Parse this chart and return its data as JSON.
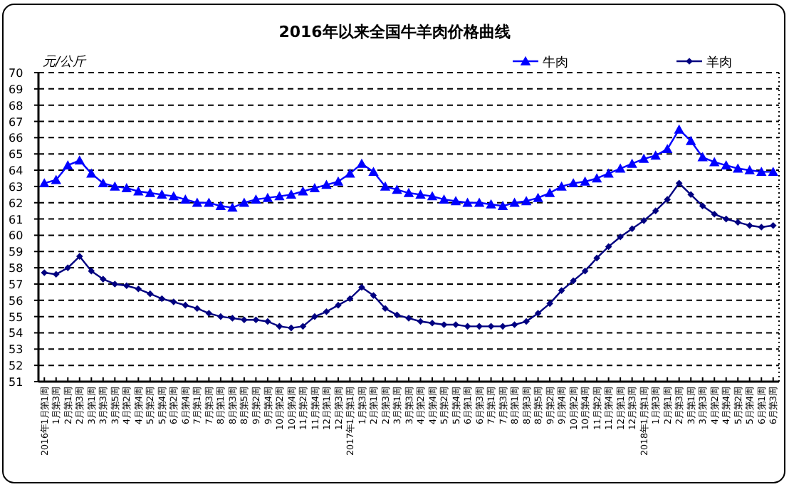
{
  "chart_data": {
    "type": "line",
    "title": "2016年以来全国牛羊肉价格曲线",
    "ylabel": "元/公斤",
    "categories": [
      "2016年1月第1周",
      "1月第3周",
      "2月第1周",
      "2月第3周",
      "3月第1周",
      "3月第3周",
      "3月第5周",
      "4月第2周",
      "4月第4周",
      "5月第2周",
      "5月第4周",
      "6月第2周",
      "6月第4周",
      "7月第1周",
      "7月第3周",
      "8月第1周",
      "8月第3周",
      "8月第5周",
      "9月第2周",
      "9月第4周",
      "10月第2周",
      "10月第4周",
      "11月第2周",
      "11月第4周",
      "12月第1周",
      "12月第3周",
      "2017年1月第1周",
      "1月第3周",
      "2月第1周",
      "2月第3周",
      "3月第1周",
      "3月第3周",
      "4月第2周",
      "4月第4周",
      "5月第2周",
      "5月第4周",
      "6月第1周",
      "6月第3周",
      "7月第1周",
      "7月第3周",
      "8月第1周",
      "8月第3周",
      "8月第5周",
      "9月第2周",
      "9月第4周",
      "10月第2周",
      "10月第4周",
      "11月第2周",
      "11月第4周",
      "12月第1周",
      "12月第3周",
      "2018年1月第1周",
      "1月第3周",
      "2月第1周",
      "2月第3周",
      "3月第1周",
      "3月第3周",
      "4月第2周",
      "4月第4周",
      "5月第2周",
      "5月第4周",
      "6月第1周",
      "6月第3周"
    ],
    "series": [
      {
        "name": "牛肉",
        "color": "#0000ff",
        "marker": "triangle",
        "values": [
          63.2,
          63.4,
          64.3,
          64.6,
          63.8,
          63.2,
          63.0,
          62.9,
          62.7,
          62.6,
          62.5,
          62.4,
          62.2,
          62.0,
          62.0,
          61.8,
          61.7,
          62.0,
          62.2,
          62.3,
          62.4,
          62.5,
          62.7,
          62.9,
          63.1,
          63.3,
          63.8,
          64.4,
          63.9,
          63.0,
          62.8,
          62.6,
          62.5,
          62.4,
          62.2,
          62.1,
          62.0,
          62.0,
          61.9,
          61.8,
          62.0,
          62.1,
          62.3,
          62.6,
          63.0,
          63.2,
          63.3,
          63.5,
          63.8,
          64.1,
          64.4,
          64.7,
          64.9,
          65.3,
          66.5,
          65.8,
          64.8,
          64.5,
          64.3,
          64.1,
          64.0,
          63.9,
          63.9
        ]
      },
      {
        "name": "羊肉",
        "color": "#000080",
        "marker": "diamond",
        "values": [
          57.7,
          57.6,
          58.0,
          58.7,
          57.8,
          57.3,
          57.0,
          56.9,
          56.7,
          56.4,
          56.1,
          55.9,
          55.7,
          55.5,
          55.2,
          55.0,
          54.9,
          54.8,
          54.8,
          54.7,
          54.4,
          54.3,
          54.4,
          55.0,
          55.3,
          55.7,
          56.1,
          56.8,
          56.3,
          55.5,
          55.1,
          54.9,
          54.7,
          54.6,
          54.5,
          54.5,
          54.4,
          54.4,
          54.4,
          54.4,
          54.5,
          54.7,
          55.2,
          55.8,
          56.6,
          57.2,
          57.8,
          58.6,
          59.3,
          59.9,
          60.4,
          60.9,
          61.5,
          62.2,
          63.2,
          62.5,
          61.8,
          61.3,
          61.0,
          60.8,
          60.6,
          60.5,
          60.6
        ]
      }
    ],
    "ylim": [
      51,
      70
    ],
    "yticks": [
      51,
      52,
      53,
      54,
      55,
      56,
      57,
      58,
      59,
      60,
      61,
      62,
      63,
      64,
      65,
      66,
      67,
      68,
      69,
      70
    ],
    "grid": "y",
    "legend": "top right",
    "line_style": "solid"
  }
}
